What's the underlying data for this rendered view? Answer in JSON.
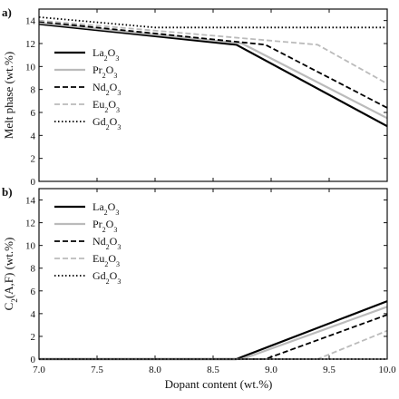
{
  "figure": {
    "xlabel": "Dopant content (wt.%)"
  },
  "chart_data": [
    {
      "panel_label": "a)",
      "type": "line",
      "title": "",
      "xlabel": "Dopant content (wt.%)",
      "ylabel": "Melt phase (wt.%)",
      "xlim": [
        7.0,
        10.0
      ],
      "ylim": [
        0,
        15
      ],
      "xticks": [
        "7.0",
        "7.5",
        "8.0",
        "8.5",
        "9.0",
        "9.5",
        "10.0"
      ],
      "yticks": [
        "0",
        "2",
        "4",
        "6",
        "8",
        "10",
        "12",
        "14"
      ],
      "legend_position": "left",
      "grid": false,
      "series": [
        {
          "name": "La",
          "sub": "2",
          "name2": "O",
          "sub2": "3",
          "color": "#000000",
          "dash": "solid",
          "width": 2.2,
          "x": [
            7.0,
            8.7,
            10.0
          ],
          "y": [
            13.7,
            11.9,
            4.8
          ]
        },
        {
          "name": "Pr",
          "sub": "2",
          "name2": "O",
          "sub2": "3",
          "color": "#bbbbbb",
          "dash": "solid",
          "width": 2.2,
          "x": [
            7.0,
            8.75,
            10.0
          ],
          "y": [
            13.8,
            12.0,
            5.5
          ]
        },
        {
          "name": "Nd",
          "sub": "2",
          "name2": "O",
          "sub2": "3",
          "color": "#000000",
          "dash": "dashed",
          "width": 1.8,
          "x": [
            7.0,
            8.95,
            10.0
          ],
          "y": [
            13.9,
            11.9,
            6.4
          ]
        },
        {
          "name": "Eu",
          "sub": "2",
          "name2": "O",
          "sub2": "3",
          "color": "#bbbbbb",
          "dash": "dashed",
          "width": 1.8,
          "x": [
            7.0,
            9.4,
            10.0
          ],
          "y": [
            14.0,
            11.9,
            8.5
          ]
        },
        {
          "name": "Gd",
          "sub": "2",
          "name2": "O",
          "sub2": "3",
          "color": "#000000",
          "dash": "dotted",
          "width": 1.8,
          "x": [
            7.0,
            8.0,
            10.0
          ],
          "y": [
            14.3,
            13.4,
            13.4
          ]
        }
      ]
    },
    {
      "panel_label": "b)",
      "type": "line",
      "title": "",
      "xlabel": "Dopant content (wt.%)",
      "ylabel": "C2(A,F) (wt.%)",
      "xlim": [
        7.0,
        10.0
      ],
      "ylim": [
        0,
        15
      ],
      "xticks": [
        "7.0",
        "7.5",
        "8.0",
        "8.5",
        "9.0",
        "9.5",
        "10.0"
      ],
      "yticks": [
        "0",
        "2",
        "4",
        "6",
        "8",
        "10",
        "12",
        "14"
      ],
      "legend_position": "top-left",
      "grid": false,
      "series": [
        {
          "name": "La",
          "sub": "2",
          "name2": "O",
          "sub2": "3",
          "color": "#000000",
          "dash": "solid",
          "width": 2.2,
          "x": [
            7.0,
            8.7,
            10.0
          ],
          "y": [
            0,
            0,
            5.1
          ]
        },
        {
          "name": "Pr",
          "sub": "2",
          "name2": "O",
          "sub2": "3",
          "color": "#bbbbbb",
          "dash": "solid",
          "width": 2.2,
          "x": [
            7.0,
            8.75,
            10.0
          ],
          "y": [
            0,
            0,
            4.6
          ]
        },
        {
          "name": "Nd",
          "sub": "2",
          "name2": "O",
          "sub2": "3",
          "color": "#000000",
          "dash": "dashed",
          "width": 1.8,
          "x": [
            7.0,
            8.95,
            10.0
          ],
          "y": [
            0,
            0,
            3.9
          ]
        },
        {
          "name": "Eu",
          "sub": "2",
          "name2": "O",
          "sub2": "3",
          "color": "#bbbbbb",
          "dash": "dashed",
          "width": 1.8,
          "x": [
            7.0,
            9.4,
            10.0
          ],
          "y": [
            0,
            0,
            2.5
          ]
        },
        {
          "name": "Gd",
          "sub": "2",
          "name2": "O",
          "sub2": "3",
          "color": "#000000",
          "dash": "dotted",
          "width": 1.8,
          "x": [
            7.0,
            10.0
          ],
          "y": [
            0,
            0
          ]
        }
      ]
    }
  ]
}
